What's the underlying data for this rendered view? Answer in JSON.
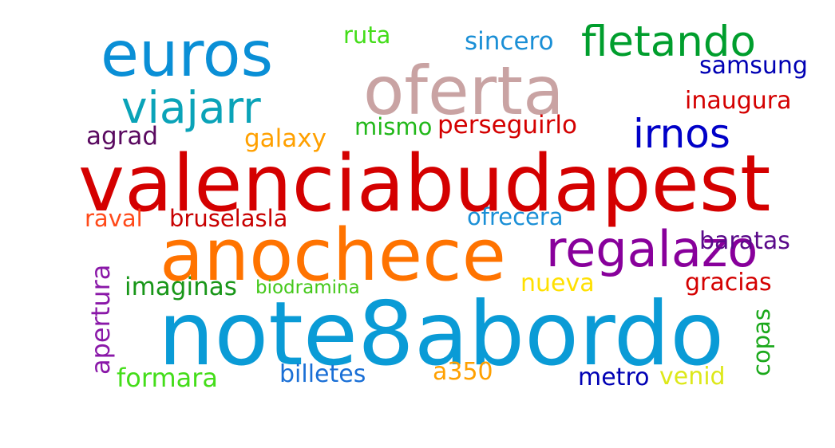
{
  "word_cloud": {
    "words": [
      {
        "text": "valenciabudapest",
        "color": "#d40000",
        "orientation": "horizontal"
      },
      {
        "text": "note8abordo",
        "color": "#0a9bd6",
        "orientation": "horizontal"
      },
      {
        "text": "anochece",
        "color": "#ff7300",
        "orientation": "horizontal"
      },
      {
        "text": "oferta",
        "color": "#c9a3a3",
        "orientation": "horizontal"
      },
      {
        "text": "euros",
        "color": "#0a8fd6",
        "orientation": "horizontal"
      },
      {
        "text": "regalazo",
        "color": "#88009b",
        "orientation": "horizontal"
      },
      {
        "text": "viajarr",
        "color": "#0aa3b8",
        "orientation": "horizontal"
      },
      {
        "text": "fletando",
        "color": "#009e2d",
        "orientation": "horizontal"
      },
      {
        "text": "irnos",
        "color": "#0000c8",
        "orientation": "horizontal"
      },
      {
        "text": "perseguirlo",
        "color": "#d40000",
        "orientation": "horizontal"
      },
      {
        "text": "inaugura",
        "color": "#d40000",
        "orientation": "horizontal"
      },
      {
        "text": "samsung",
        "color": "#0000b4",
        "orientation": "horizontal"
      },
      {
        "text": "sincero",
        "color": "#1a8fd6",
        "orientation": "horizontal"
      },
      {
        "text": "ruta",
        "color": "#44dd1a",
        "orientation": "horizontal"
      },
      {
        "text": "mismo",
        "color": "#22b81a",
        "orientation": "horizontal"
      },
      {
        "text": "galaxy",
        "color": "#ffa000",
        "orientation": "horizontal"
      },
      {
        "text": "agrad",
        "color": "#5a0a60",
        "orientation": "horizontal"
      },
      {
        "text": "raval",
        "color": "#ff4a1a",
        "orientation": "horizontal"
      },
      {
        "text": "bruselasla",
        "color": "#c80000",
        "orientation": "horizontal"
      },
      {
        "text": "ofrecera",
        "color": "#1a8fd6",
        "orientation": "horizontal"
      },
      {
        "text": "baratas",
        "color": "#5a0a8a",
        "orientation": "horizontal"
      },
      {
        "text": "imaginas",
        "color": "#189618",
        "orientation": "horizontal"
      },
      {
        "text": "biodramina",
        "color": "#44c81a",
        "orientation": "horizontal"
      },
      {
        "text": "nueva",
        "color": "#ffe000",
        "orientation": "horizontal"
      },
      {
        "text": "gracias",
        "color": "#d40000",
        "orientation": "horizontal"
      },
      {
        "text": "formara",
        "color": "#44dd1a",
        "orientation": "horizontal"
      },
      {
        "text": "billetes",
        "color": "#1a6fd6",
        "orientation": "horizontal"
      },
      {
        "text": "a350",
        "color": "#ffa000",
        "orientation": "horizontal"
      },
      {
        "text": "metro",
        "color": "#0000b4",
        "orientation": "horizontal"
      },
      {
        "text": "venid",
        "color": "#dde81a",
        "orientation": "horizontal"
      },
      {
        "text": "apertura",
        "color": "#8a18a8",
        "orientation": "vertical"
      },
      {
        "text": "copas",
        "color": "#1aa81a",
        "orientation": "vertical"
      }
    ]
  }
}
